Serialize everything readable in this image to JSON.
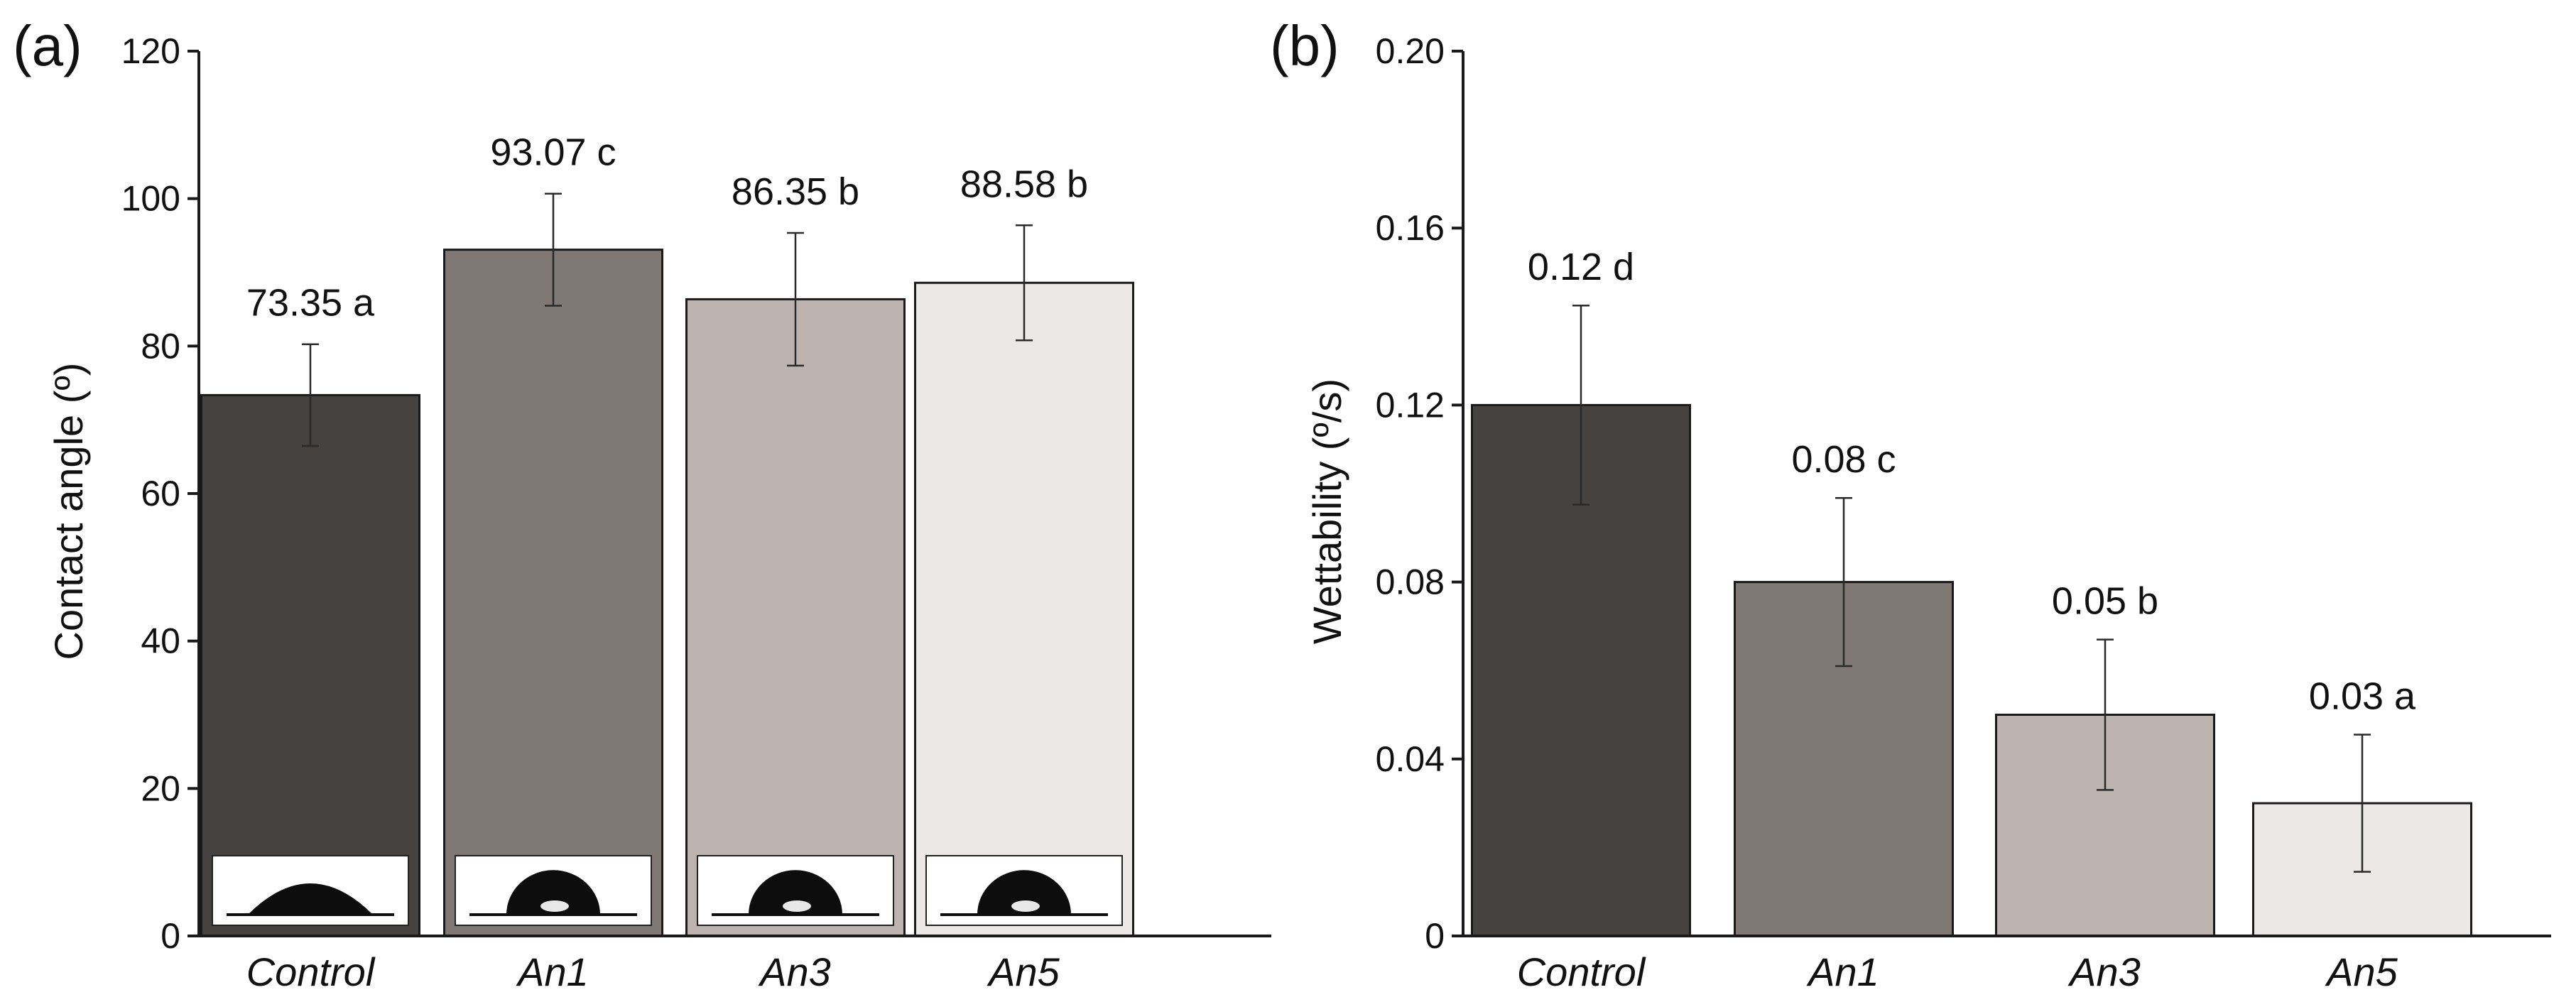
{
  "chart_data": [
    {
      "type": "bar",
      "panel": "(a)",
      "categories": [
        "Control",
        "An1",
        "An3",
        "An5"
      ],
      "values": [
        73.35,
        93.07,
        86.35,
        88.58
      ],
      "errors": [
        6.9,
        7.6,
        9.0,
        7.8
      ],
      "data_labels": [
        "73.35 a",
        "93.07 c",
        "86.35 b",
        "88.58 b"
      ],
      "colors": [
        "#454240",
        "#807874",
        "#bdb3b0",
        "#ece8e8"
      ],
      "ylabel": "Contact angle (º)",
      "ylim": [
        0,
        120
      ],
      "yticks": [
        0,
        20,
        40,
        60,
        80,
        100,
        120
      ],
      "yticklabels": [
        "0",
        "20",
        "40",
        "60",
        "80",
        "100",
        "120"
      ],
      "inset_images": [
        "droplet-control",
        "droplet-an1",
        "droplet-an3",
        "droplet-an5"
      ]
    },
    {
      "type": "bar",
      "panel": "(b)",
      "categories": [
        "Control",
        "An1",
        "An3",
        "An5"
      ],
      "values": [
        0.12,
        0.08,
        0.05,
        0.03
      ],
      "errors": [
        0.0225,
        0.019,
        0.017,
        0.0155
      ],
      "data_labels": [
        "0.12 d",
        "0.08 c",
        "0.05 b",
        "0.03 a"
      ],
      "colors": [
        "#454240",
        "#807874",
        "#bdb3b0",
        "#ece8e8"
      ],
      "ylabel": "Wettability (º/s)",
      "ylim": [
        0,
        0.2
      ],
      "yticks": [
        0,
        0.04,
        0.08,
        0.12,
        0.16,
        0.2
      ],
      "yticklabels": [
        "0",
        "0.04",
        "0.08",
        "0.12",
        "0.16",
        "0.20"
      ]
    }
  ]
}
